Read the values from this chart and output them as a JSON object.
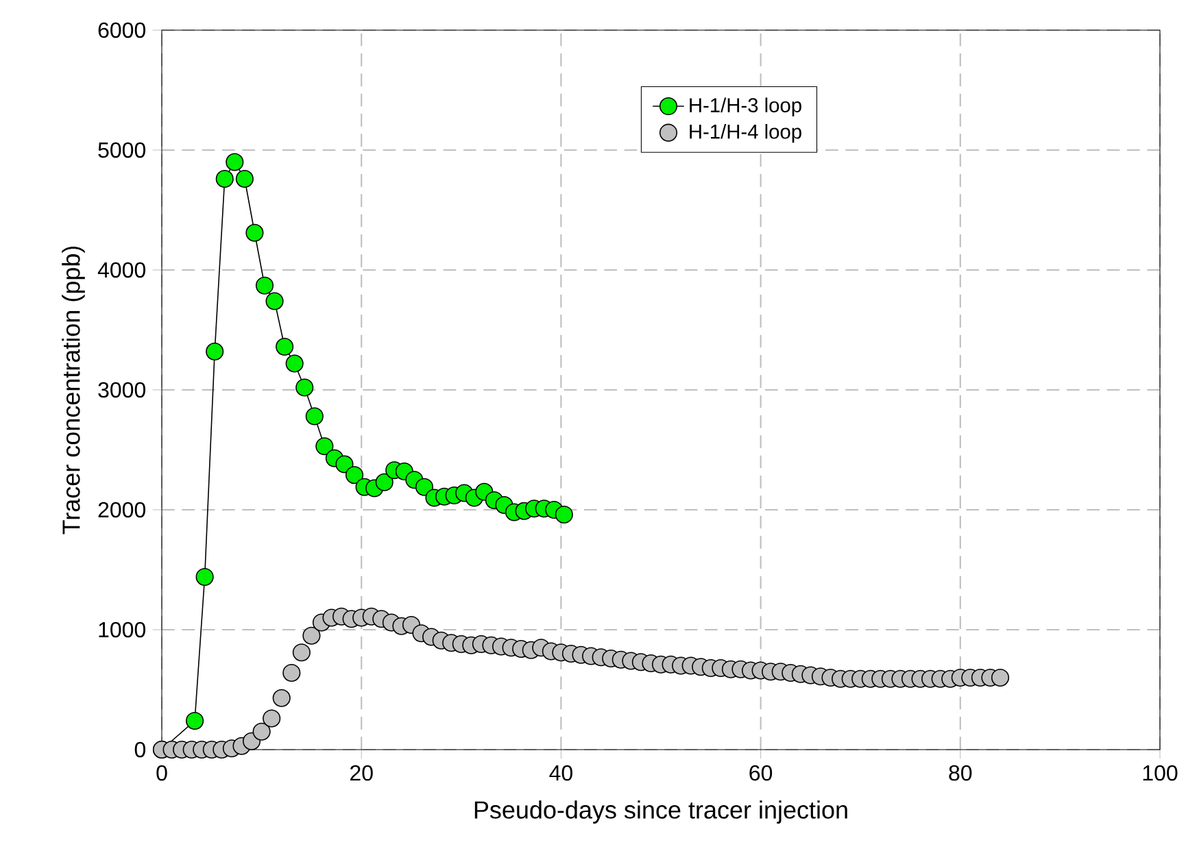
{
  "chart_data": {
    "type": "line",
    "xlabel": "Pseudo-days since tracer injection",
    "ylabel": "Tracer concentration (ppb)",
    "xlim": [
      0,
      100
    ],
    "xticks": [
      0,
      20,
      40,
      60,
      80,
      100
    ],
    "ylim": [
      0,
      6000
    ],
    "yticks": [
      0,
      1000,
      2000,
      3000,
      4000,
      5000,
      6000
    ],
    "grid": true,
    "legend": "top right",
    "marker": "circle",
    "line_style": "solid",
    "series": [
      {
        "name": "H-1/H-3 loop",
        "color": "#00ee00",
        "x": [
          0,
          3.3,
          4.3,
          5.3,
          6.3,
          7.3,
          8.3,
          9.3,
          10.3,
          11.3,
          12.3,
          13.3,
          14.3,
          15.3,
          16.3,
          17.3,
          18.3,
          19.3,
          20.3,
          21.3,
          22.3,
          23.3,
          24.3,
          25.3,
          26.3,
          27.3,
          28.3,
          29.3,
          30.3,
          31.3,
          32.3,
          33.3,
          34.3,
          35.3,
          36.3,
          37.3,
          38.3,
          39.3,
          40.3
        ],
        "values": [
          0,
          240,
          1440,
          3320,
          4760,
          4900,
          4760,
          4310,
          3870,
          3740,
          3360,
          3220,
          3020,
          2780,
          2530,
          2430,
          2380,
          2290,
          2190,
          2180,
          2230,
          2330,
          2320,
          2250,
          2190,
          2100,
          2110,
          2120,
          2140,
          2100,
          2150,
          2080,
          2040,
          1980,
          1990,
          2010,
          2010,
          2000,
          1960
        ]
      },
      {
        "name": "H-1/H-4 loop",
        "type": "scatter",
        "color": "#c0c0c0",
        "x": [
          0,
          1,
          2,
          3,
          4,
          5,
          6,
          7,
          8,
          9,
          10,
          11,
          12,
          13,
          14,
          15,
          16,
          17,
          18,
          19,
          20,
          21,
          22,
          23,
          24,
          25,
          26,
          27,
          28,
          29,
          30,
          31,
          32,
          33,
          34,
          35,
          36,
          37,
          38,
          39,
          40,
          41,
          42,
          43,
          44,
          45,
          46,
          47,
          48,
          49,
          50,
          51,
          52,
          53,
          54,
          55,
          56,
          57,
          58,
          59,
          60,
          61,
          62,
          63,
          64,
          65,
          66,
          67,
          68,
          69,
          70,
          71,
          72,
          73,
          74,
          75,
          76,
          77,
          78,
          79,
          80,
          81,
          82,
          83,
          84
        ],
        "values": [
          0,
          0,
          0,
          0,
          0,
          0,
          0,
          10,
          30,
          70,
          150,
          260,
          430,
          640,
          810,
          950,
          1060,
          1100,
          1110,
          1090,
          1100,
          1110,
          1090,
          1060,
          1030,
          1040,
          970,
          940,
          910,
          890,
          880,
          870,
          880,
          870,
          860,
          850,
          840,
          830,
          850,
          820,
          810,
          800,
          790,
          780,
          770,
          760,
          750,
          740,
          730,
          720,
          710,
          710,
          700,
          700,
          690,
          680,
          680,
          670,
          670,
          660,
          660,
          650,
          650,
          640,
          630,
          620,
          610,
          600,
          590,
          590,
          590,
          590,
          590,
          590,
          590,
          590,
          590,
          590,
          590,
          590,
          600,
          600,
          600,
          600,
          600
        ]
      }
    ]
  }
}
